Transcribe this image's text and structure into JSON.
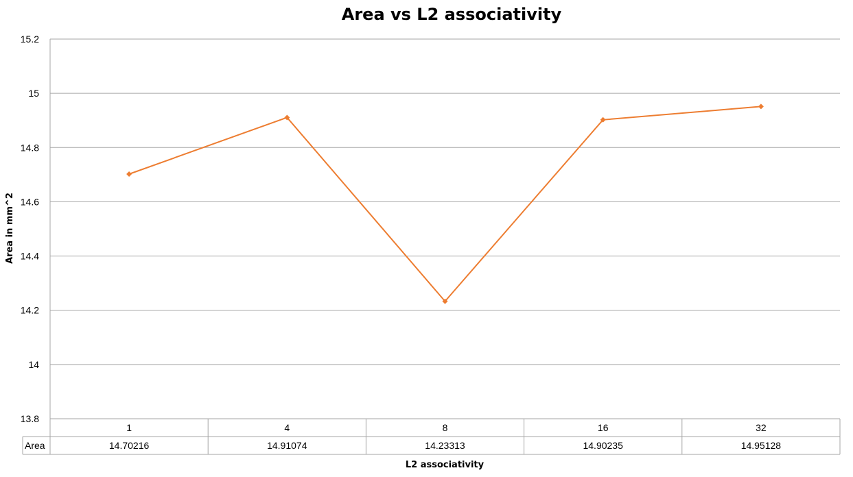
{
  "chart_data": {
    "type": "line",
    "title": "Area vs L2 associativity",
    "xlabel": "L2 associativity",
    "ylabel": "Area in mm^2",
    "categories": [
      "1",
      "4",
      "8",
      "16",
      "32"
    ],
    "series": [
      {
        "name": "Area",
        "values": [
          14.70216,
          14.91074,
          14.23313,
          14.90235,
          14.95128
        ],
        "value_labels": [
          "14.70216",
          "14.91074",
          "14.23313",
          "14.90235",
          "14.95128"
        ],
        "color": "#ED7D31"
      }
    ],
    "ylim": [
      13.8,
      15.2
    ],
    "yticks": [
      13.8,
      14,
      14.2,
      14.4,
      14.6,
      14.8,
      15,
      15.2
    ],
    "ytick_labels": [
      "13.8",
      "14",
      "14.2",
      "14.4",
      "14.6",
      "14.8",
      "15",
      "15.2"
    ],
    "grid": true,
    "legend": "data-table-below-x-axis"
  }
}
